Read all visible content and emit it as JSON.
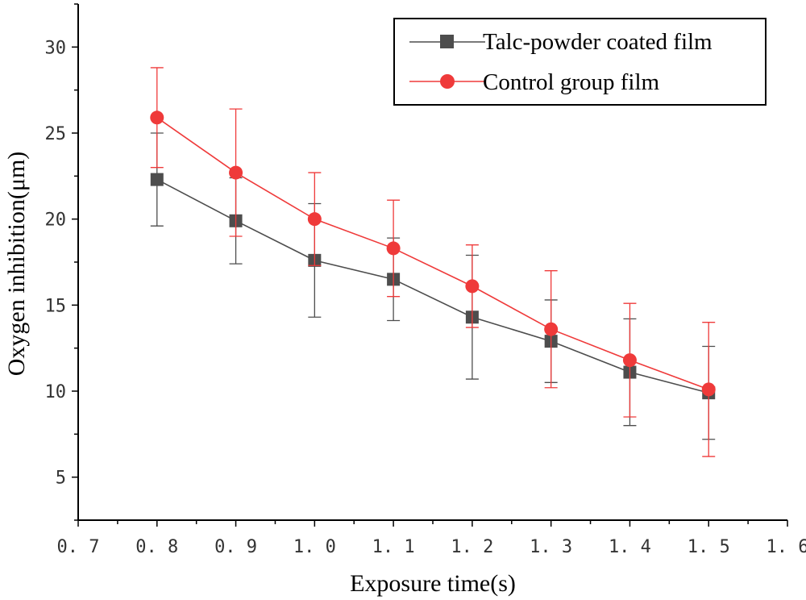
{
  "chart_data": {
    "type": "line",
    "xlabel": "Exposure time(s)",
    "ylabel": "Oxygen inhibition(μm)",
    "xlim": [
      0.7,
      1.6
    ],
    "ylim": [
      2.5,
      32.5
    ],
    "x_ticks": [
      0.7,
      0.8,
      0.9,
      1.0,
      1.1,
      1.2,
      1.3,
      1.4,
      1.5,
      1.6
    ],
    "x_tick_labels": [
      "0. 7",
      "0. 8",
      "0. 9",
      "1. 0",
      "1. 1",
      "1. 2",
      "1. 3",
      "1. 4",
      "1. 5",
      "1. 6"
    ],
    "y_ticks": [
      5,
      10,
      15,
      20,
      25,
      30
    ],
    "y_tick_labels": [
      "5",
      "10",
      "15",
      "20",
      "25",
      "30"
    ],
    "grid": false,
    "legend_position": "top-right",
    "x": [
      0.8,
      0.9,
      1.0,
      1.1,
      1.2,
      1.3,
      1.4,
      1.5
    ],
    "series": [
      {
        "name": "Talc-powder coated film",
        "color": "#4d4d4d",
        "marker": "square",
        "values": [
          22.3,
          19.9,
          17.6,
          16.5,
          14.3,
          12.9,
          11.1,
          9.9
        ],
        "err_low": [
          19.6,
          17.4,
          14.3,
          14.1,
          10.7,
          10.5,
          8.0,
          7.2
        ],
        "err_high": [
          25.0,
          22.4,
          20.9,
          18.9,
          17.9,
          15.3,
          14.2,
          12.6
        ]
      },
      {
        "name": "Control group film",
        "color": "#ef3a3a",
        "marker": "circle",
        "values": [
          25.9,
          22.7,
          20.0,
          18.3,
          16.1,
          13.6,
          11.8,
          10.1
        ],
        "err_low": [
          23.0,
          19.0,
          17.3,
          15.5,
          13.7,
          10.2,
          8.5,
          6.2
        ],
        "err_high": [
          28.8,
          26.4,
          22.7,
          21.1,
          18.5,
          17.0,
          15.1,
          14.0
        ]
      }
    ]
  }
}
